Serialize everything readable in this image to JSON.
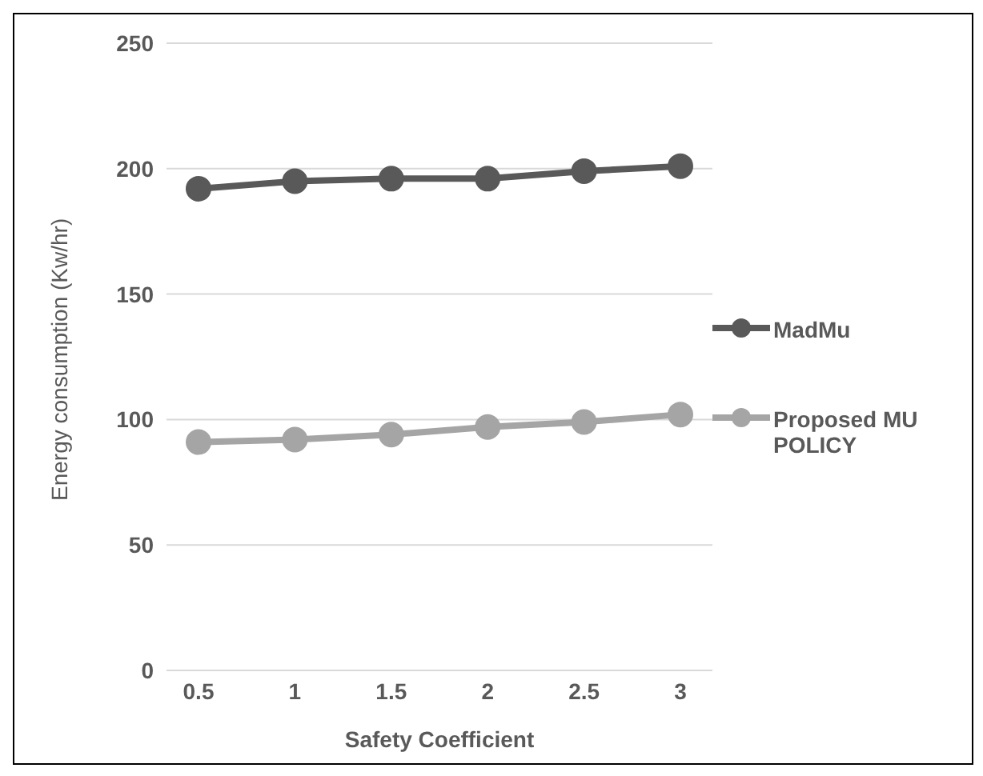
{
  "chart_data": {
    "type": "line",
    "xlabel": "Safety Coefficient",
    "ylabel": "Energy consumption (Kw/hr)",
    "categories": [
      "0.5",
      "1",
      "1.5",
      "2",
      "2.5",
      "3"
    ],
    "series": [
      {
        "name": "MadMu",
        "color": "#595959",
        "values": [
          192,
          195,
          196,
          196,
          199,
          201
        ]
      },
      {
        "name": "Proposed MU POLICY",
        "color": "#a5a5a5",
        "values": [
          91,
          92,
          94,
          97,
          99,
          102
        ]
      }
    ],
    "ylim": [
      0,
      250
    ],
    "yticks": [
      0,
      50,
      100,
      150,
      200,
      250
    ],
    "grid": "y",
    "legend": "right",
    "marker": "circle"
  }
}
